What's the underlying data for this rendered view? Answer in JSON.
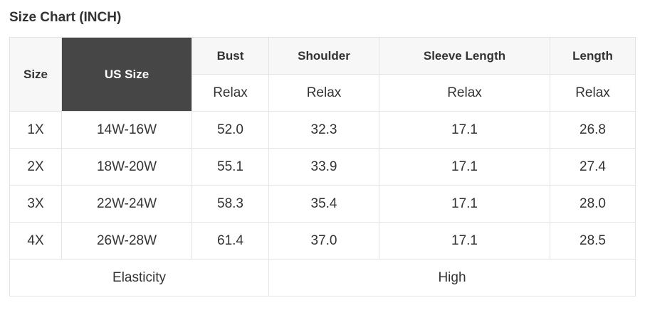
{
  "title": "Size Chart (INCH)",
  "headers": {
    "size": "Size",
    "us_size": "US Size",
    "bust": "Bust",
    "shoulder": "Shoulder",
    "sleeve": "Sleeve Length",
    "length": "Length"
  },
  "subheaders": [
    "Relax",
    "Relax",
    "Relax",
    "Relax"
  ],
  "rows": [
    [
      "1X",
      "14W-16W",
      "52.0",
      "32.3",
      "17.1",
      "26.8"
    ],
    [
      "2X",
      "18W-20W",
      "55.1",
      "33.9",
      "17.1",
      "27.4"
    ],
    [
      "3X",
      "22W-24W",
      "58.3",
      "35.4",
      "17.1",
      "28.0"
    ],
    [
      "4X",
      "26W-28W",
      "61.4",
      "37.0",
      "17.1",
      "28.5"
    ]
  ],
  "footer": {
    "label": "Elasticity",
    "value": "High"
  },
  "colors": {
    "header_bg": "#f7f7f7",
    "highlight_bg": "#464646",
    "border": "#e3e3e3"
  }
}
